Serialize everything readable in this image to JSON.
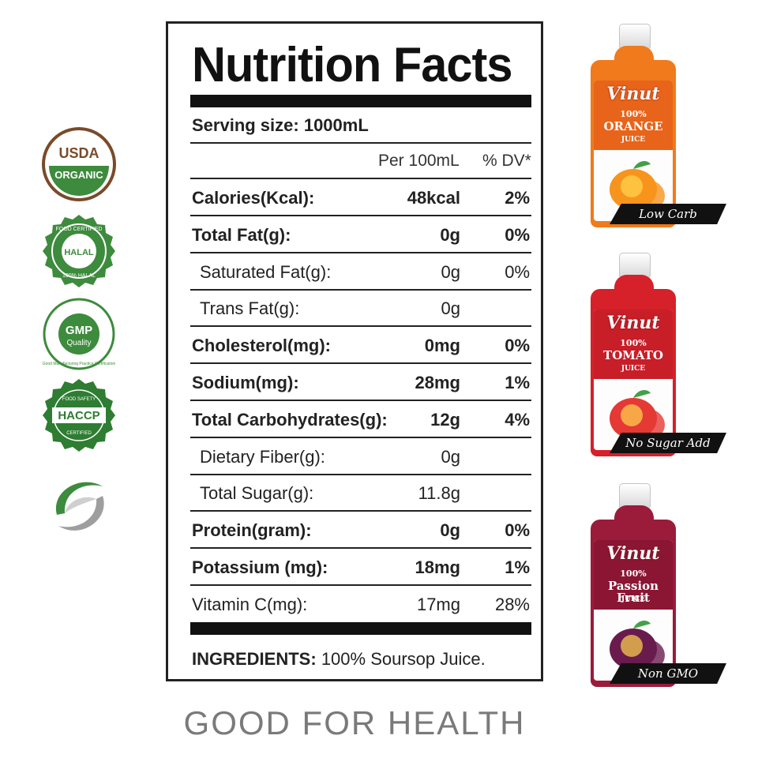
{
  "badges": [
    {
      "name": "usda-organic-badge",
      "top_text": "USDA",
      "bottom_text": "ORGANIC",
      "color": "#7a4a2a",
      "accent": "#3d8b3d"
    },
    {
      "name": "halal-badge",
      "text": "HALAL",
      "ring_top": "FOOD CERTIFIED",
      "ring_bottom": "100% HALAL",
      "color": "#3d8b3d"
    },
    {
      "name": "gmp-badge",
      "text_main": "GMP",
      "text_sub": "Quality",
      "ring": "Good Manufacturing Practice Certification",
      "color": "#3d8b3d"
    },
    {
      "name": "haccp-badge",
      "text": "HACCP",
      "ring_top": "FOOD SAFETY",
      "ring_bottom": "CERTIFIED",
      "color": "#2e7d32"
    },
    {
      "name": "swirl-logo",
      "color": "#3d8b3d",
      "accent": "#9e9e9e"
    }
  ],
  "nutrition": {
    "title": "Nutrition Facts",
    "serving": "Serving size: 1000mL",
    "col_amount": "Per 100mL",
    "col_dv": "% DV*",
    "rows": [
      {
        "label": "Calories(Kcal):",
        "amount": "48kcal",
        "dv": "2%",
        "bold": true,
        "sub": false
      },
      {
        "label": "Total Fat(g):",
        "amount": "0g",
        "dv": "0%",
        "bold": true,
        "sub": false
      },
      {
        "label": "Saturated Fat(g):",
        "amount": "0g",
        "dv": "0%",
        "bold": false,
        "sub": true
      },
      {
        "label": "Trans Fat(g):",
        "amount": "0g",
        "dv": "",
        "bold": false,
        "sub": true
      },
      {
        "label": "Cholesterol(mg):",
        "amount": "0mg",
        "dv": "0%",
        "bold": true,
        "sub": false
      },
      {
        "label": "Sodium(mg):",
        "amount": "28mg",
        "dv": "1%",
        "bold": true,
        "sub": false
      },
      {
        "label": "Total Carbohydrates(g):",
        "amount": "12g",
        "dv": "4%",
        "bold": true,
        "sub": false
      },
      {
        "label": "Dietary Fiber(g):",
        "amount": "0g",
        "dv": "",
        "bold": false,
        "sub": true
      },
      {
        "label": "Total Sugar(g):",
        "amount": "11.8g",
        "dv": "",
        "bold": false,
        "sub": true
      },
      {
        "label": "Protein(gram):",
        "amount": "0g",
        "dv": "0%",
        "bold": true,
        "sub": false
      },
      {
        "label": "Potassium (mg):",
        "amount": "18mg",
        "dv": "1%",
        "bold": true,
        "sub": false
      },
      {
        "label": "Vitamin C(mg):",
        "amount": "17mg",
        "dv": "28%",
        "bold": false,
        "sub": false
      }
    ],
    "ingredients_label": "INGREDIENTS:",
    "ingredients_value": "100% Soursop Juice."
  },
  "tagline": "GOOD FOR HEALTH",
  "bottles": [
    {
      "brand": "Vinut",
      "percent": "100%",
      "flavor": "ORANGE",
      "juice": "JUICE",
      "claim": "Low Carb",
      "body_color": "#f07a1c",
      "label_color": "#e8641a",
      "fruit_color": "#f7941d"
    },
    {
      "brand": "Vinut",
      "percent": "100%",
      "flavor": "TOMATO",
      "juice": "JUICE",
      "claim": "No Sugar Add",
      "body_color": "#d6202a",
      "label_color": "#c81e28",
      "fruit_color": "#e53935"
    },
    {
      "brand": "Vinut",
      "percent": "100%",
      "flavor": "Passion Fruit",
      "juice": "JUICE",
      "claim": "Non GMO",
      "body_color": "#9b1b3a",
      "label_color": "#8a1634",
      "fruit_color": "#6a1b4d"
    }
  ]
}
